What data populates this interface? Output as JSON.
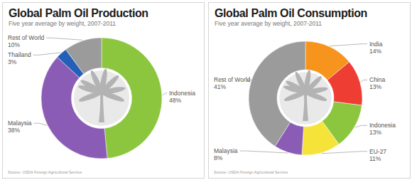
{
  "chart_data": [
    {
      "type": "pie",
      "title": "Global Palm Oil Production",
      "subtitle": "Five year average by weight, 2007-2011",
      "categories": [
        "Indonesia",
        "Malaysia",
        "Thailand",
        "Rest of World"
      ],
      "values": [
        48,
        38,
        3,
        10
      ],
      "value_labels": [
        "48%",
        "38%",
        "3%",
        "10%"
      ],
      "colors": [
        "#8cc63e",
        "#8b5cb5",
        "#2460b8",
        "#9b9b9b"
      ],
      "data_labels": true,
      "annotations": [
        "Source: USDA Foreign Agricultural Service"
      ]
    },
    {
      "type": "pie",
      "title": "Global Palm Oil Consumption",
      "subtitle": "Five year average by weight, 2007-2011",
      "categories": [
        "India",
        "China",
        "Indonesia",
        "EU-27",
        "Malaysia",
        "Rest of World"
      ],
      "values": [
        14,
        13,
        13,
        11,
        8,
        41
      ],
      "value_labels": [
        "14%",
        "13%",
        "13%",
        "11%",
        "8%",
        "41%"
      ],
      "colors": [
        "#f7941d",
        "#ee3d33",
        "#8cc63e",
        "#f5e33a",
        "#8b5cb5",
        "#9b9b9b"
      ],
      "data_labels": true,
      "annotations": [
        "Source: USDA Foreign Agricultural Service"
      ]
    }
  ]
}
